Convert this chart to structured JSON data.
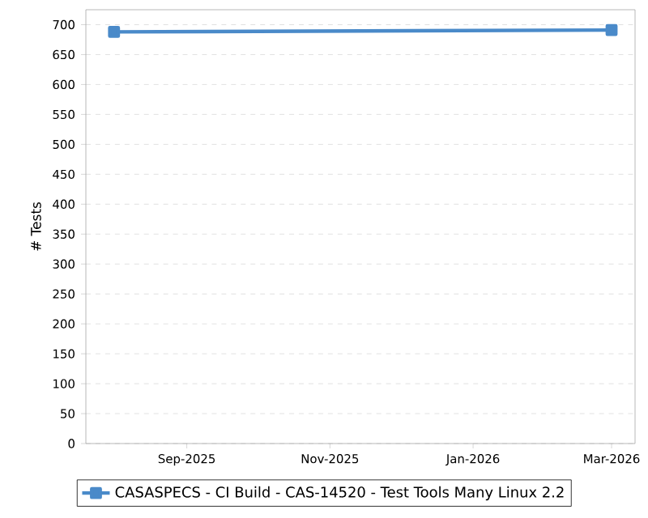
{
  "chart_data": {
    "type": "line",
    "ylabel": "# Tests",
    "x": [
      "2025-08-01",
      "2026-03-01"
    ],
    "series": [
      {
        "name": "CASASPECS - CI Build - CAS-14520 - Test Tools Many Linux 2.2",
        "color": "#4a8ac9",
        "values": [
          688,
          691
        ]
      }
    ],
    "xlim": [
      "2025-07-20",
      "2026-03-11"
    ],
    "xticks": [
      {
        "value": "2025-09-01",
        "label": "Sep-2025"
      },
      {
        "value": "2025-11-01",
        "label": "Nov-2025"
      },
      {
        "value": "2026-01-01",
        "label": "Jan-2026"
      },
      {
        "value": "2026-03-01",
        "label": "Mar-2026"
      }
    ],
    "ylim": [
      0,
      725
    ],
    "yticks": [
      0,
      50,
      100,
      150,
      200,
      250,
      300,
      350,
      400,
      450,
      500,
      550,
      600,
      650,
      700
    ],
    "grid": "y",
    "legend": "bottom",
    "marker": "square",
    "line_style": "solid"
  }
}
